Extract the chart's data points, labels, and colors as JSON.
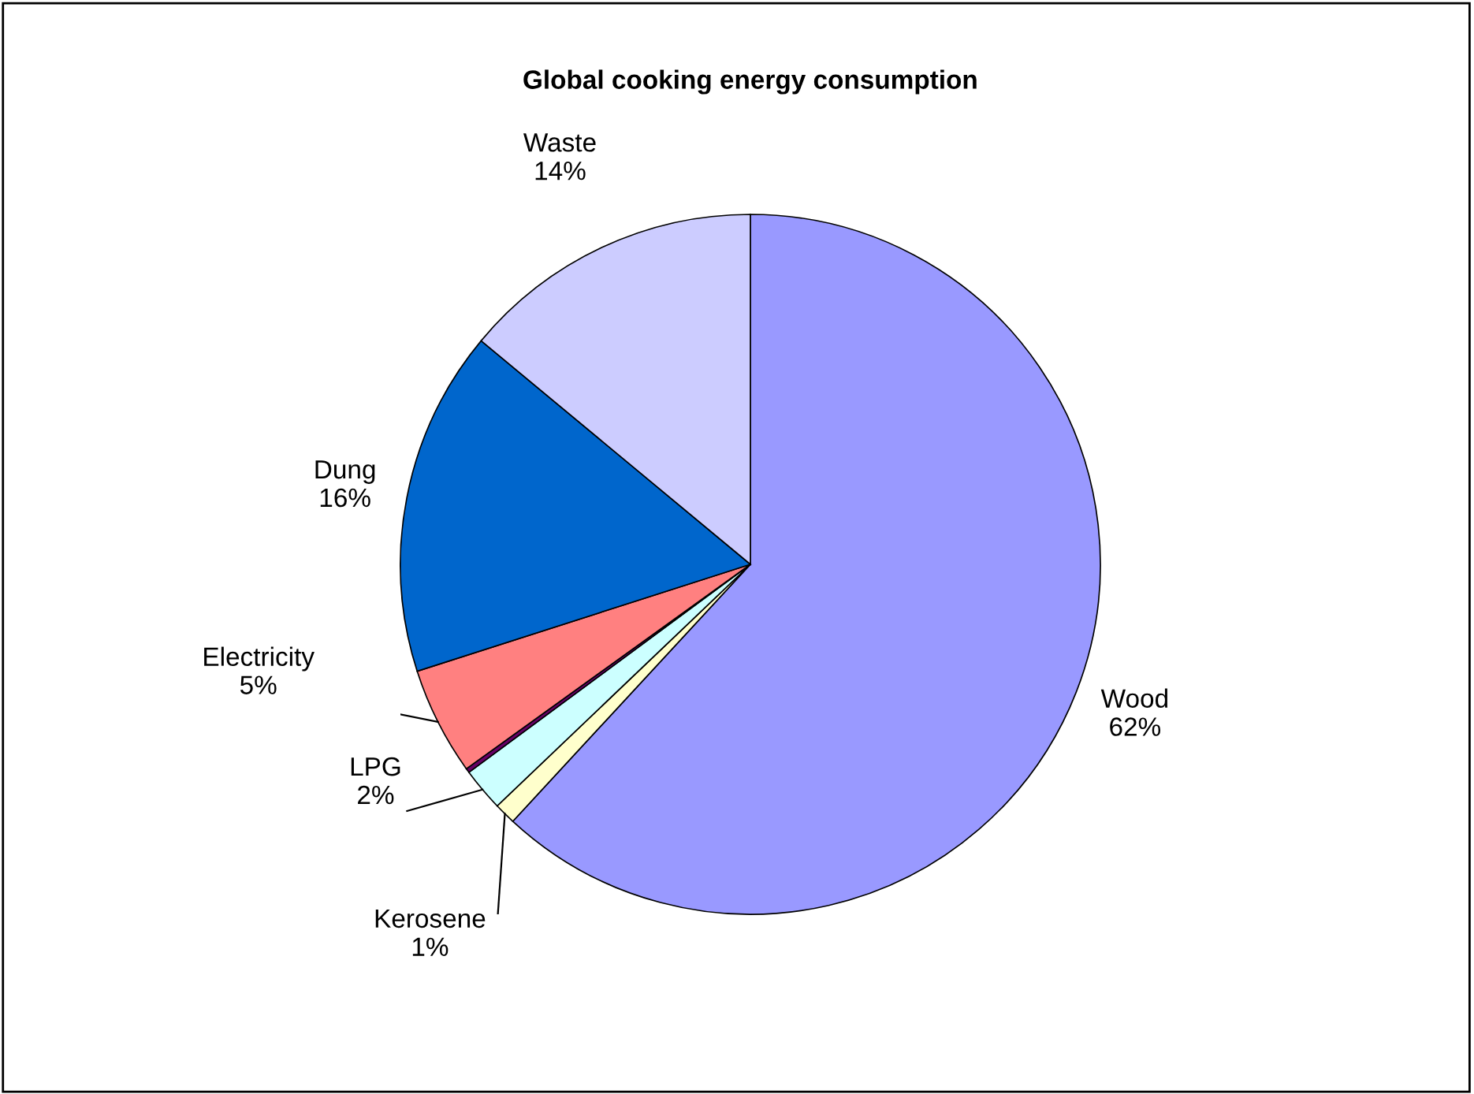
{
  "chart_data": {
    "type": "pie",
    "title": "Global cooking energy consumption",
    "categories": [
      "Wood",
      "Kerosene",
      "LPG",
      null,
      "Electricity",
      "Dung",
      "Waste"
    ],
    "values": [
      62,
      1,
      2,
      0.2,
      5,
      16,
      14
    ],
    "colors": [
      "#9999ff",
      "#ffffcc",
      "#ccffff",
      "#660066",
      "#ff8080",
      "#0066cc",
      "#ccccff"
    ],
    "value_labels": [
      "62%",
      "1%",
      "2%",
      null,
      "5%",
      "16%",
      "14%"
    ],
    "legend": false
  }
}
